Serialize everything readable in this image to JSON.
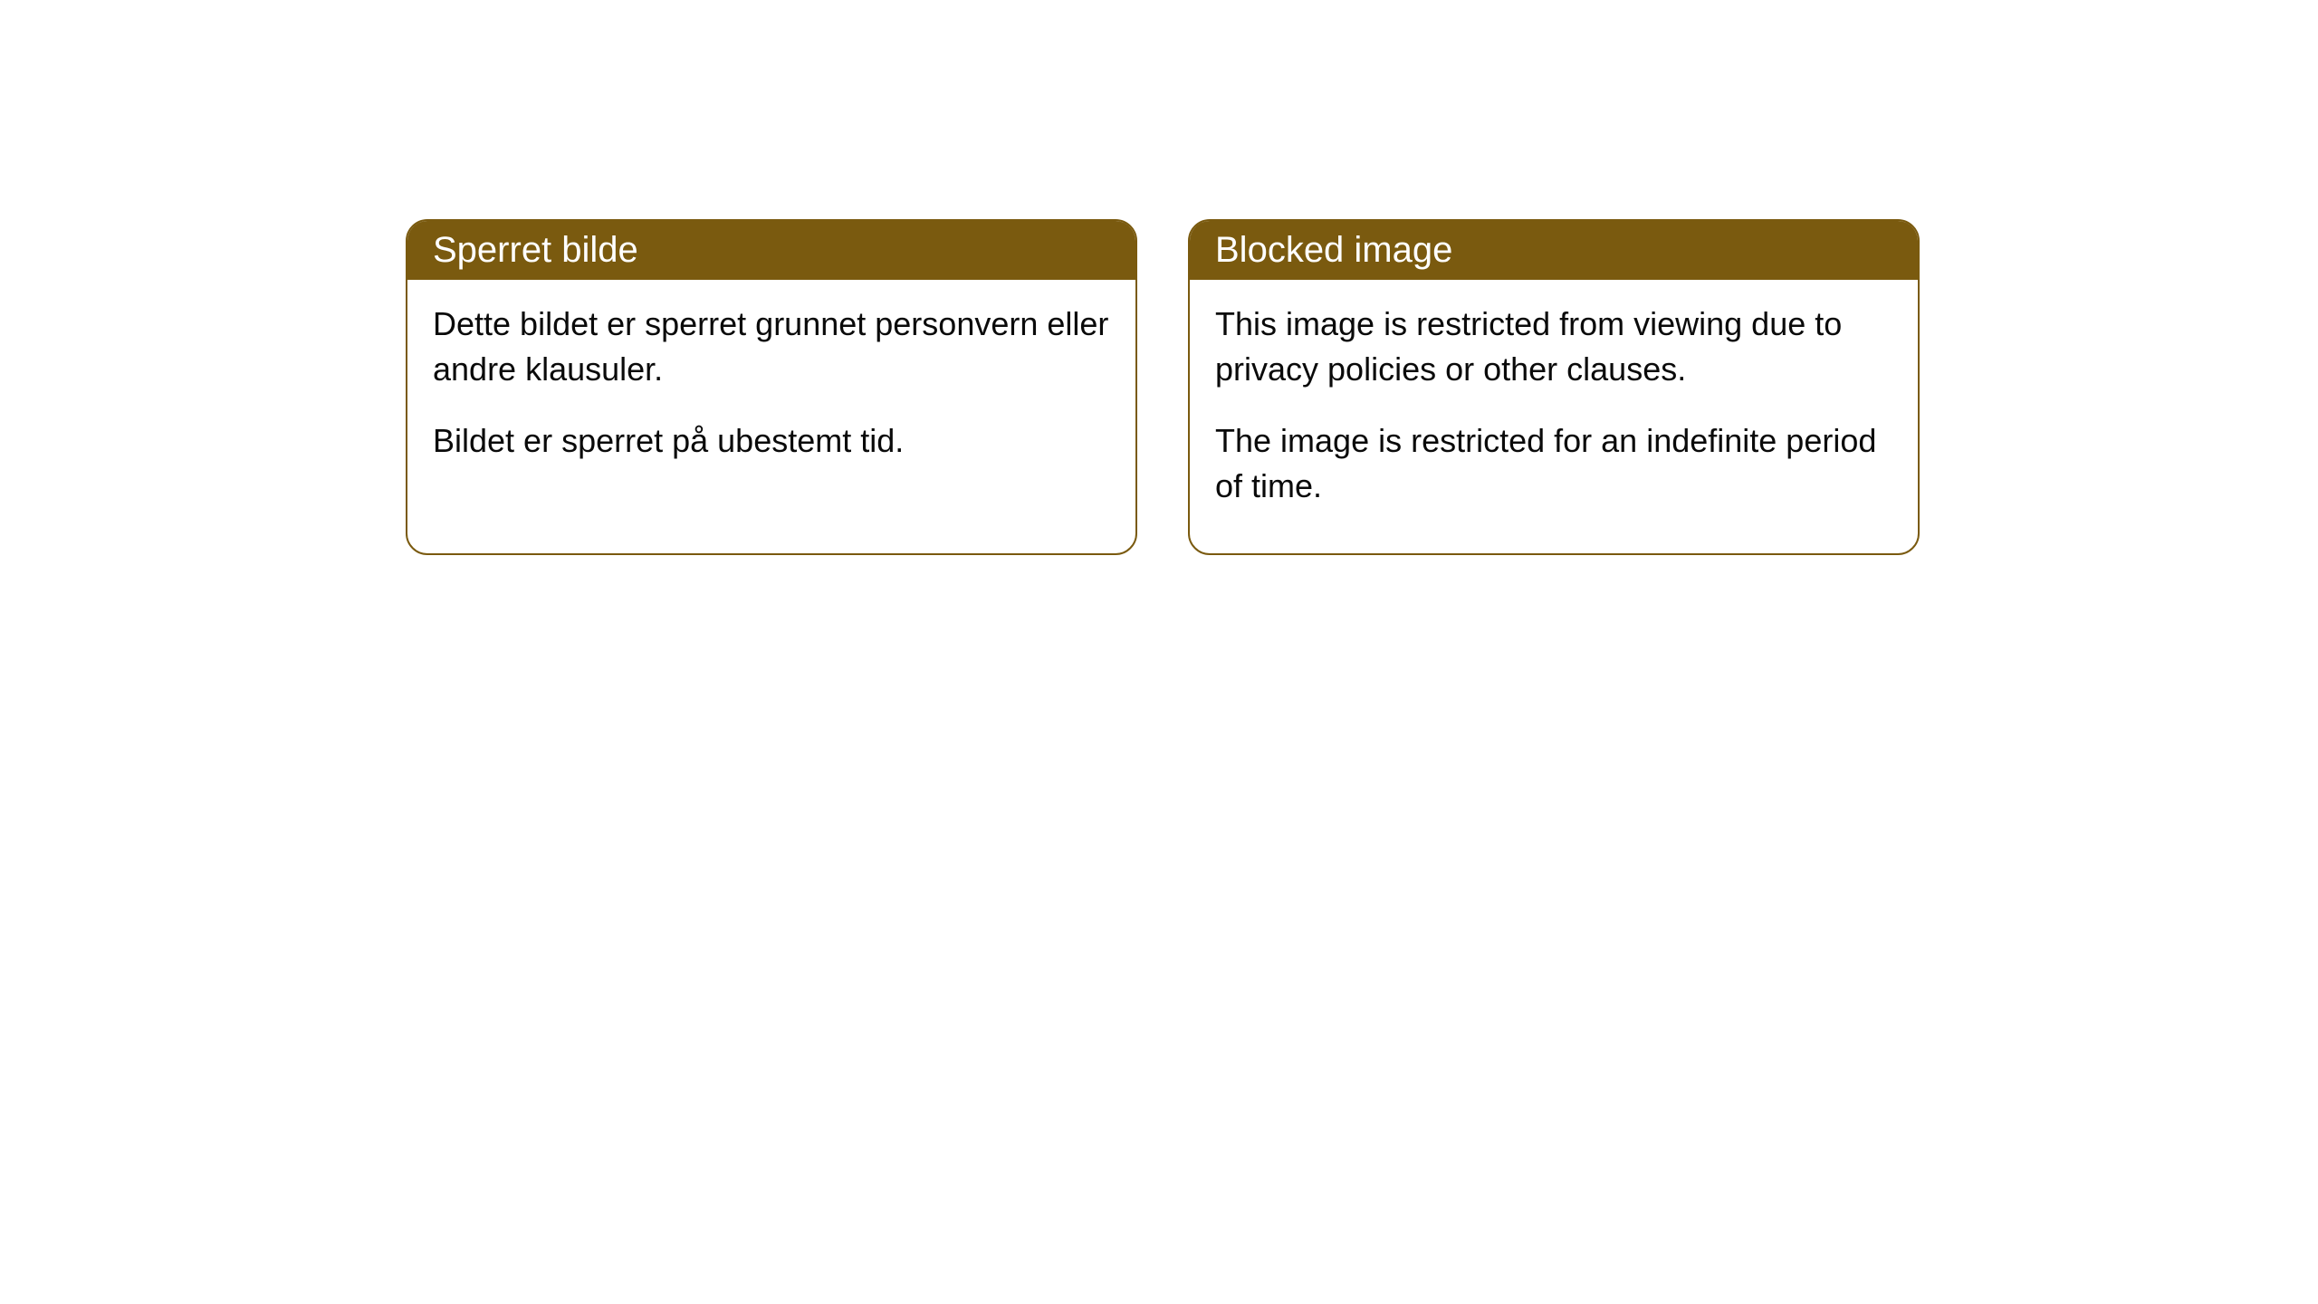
{
  "cards": [
    {
      "title": "Sperret bilde",
      "paragraph1": "Dette bildet er sperret grunnet personvern eller andre klausuler.",
      "paragraph2": "Bildet er sperret på ubestemt tid."
    },
    {
      "title": "Blocked image",
      "paragraph1": "This image is restricted from viewing due to privacy policies or other clauses.",
      "paragraph2": "The image is restricted for an indefinite period of time."
    }
  ],
  "styling": {
    "header_background": "#7a5a0f",
    "header_text_color": "#ffffff",
    "border_color": "#7a5a0f",
    "body_text_color": "#0a0a0a",
    "card_background": "#ffffff",
    "page_background": "#ffffff",
    "border_radius": 24,
    "title_fontsize": 40,
    "body_fontsize": 36
  }
}
